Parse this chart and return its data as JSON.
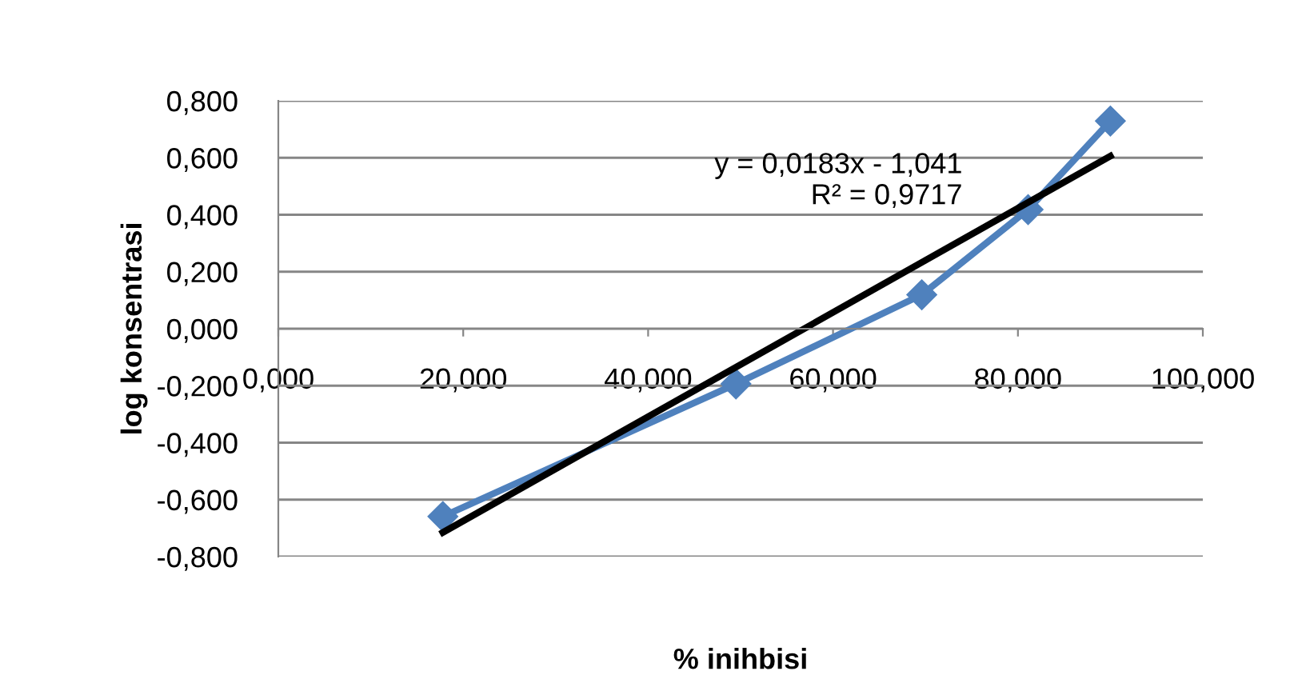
{
  "chart_data": {
    "type": "line",
    "xlabel": "% inihbisi",
    "ylabel": "log konsentrasi",
    "series": [
      {
        "color": "#4f81bd",
        "marker": "diamond",
        "x": [
          17.8,
          49.5,
          69.6,
          81.1,
          90.0
        ],
        "values": [
          -0.659,
          -0.194,
          0.119,
          0.418,
          0.729
        ]
      },
      {
        "color": "#000000",
        "marker": "none",
        "x": [
          17.8,
          90.0
        ],
        "values": [
          -0.715,
          0.606
        ]
      }
    ],
    "annotations": [
      "y = 0,0183x - 1,041\nR² = 0,9717"
    ],
    "xlim": [
      0,
      100
    ],
    "xticks": [
      {
        "value": 0,
        "label": "0,000"
      },
      {
        "value": 20,
        "label": "20,000"
      },
      {
        "value": 40,
        "label": "40,000"
      },
      {
        "value": 60,
        "label": "60,000"
      },
      {
        "value": 80,
        "label": "80,000"
      },
      {
        "value": 100,
        "label": "100,000"
      }
    ],
    "ylim": [
      -0.8,
      0.8
    ],
    "yticks": [
      {
        "value": -0.8,
        "label": "-0,800"
      },
      {
        "value": -0.6,
        "label": "-0,600"
      },
      {
        "value": -0.4,
        "label": "-0,400"
      },
      {
        "value": -0.2,
        "label": "-0,200"
      },
      {
        "value": 0,
        "label": "0,000"
      },
      {
        "value": 0.2,
        "label": "0,200"
      },
      {
        "value": 0.4,
        "label": "0,400"
      },
      {
        "value": 0.6,
        "label": "0,600"
      },
      {
        "value": 0.8,
        "label": "0,800"
      }
    ],
    "grid": "y",
    "legend": false
  }
}
